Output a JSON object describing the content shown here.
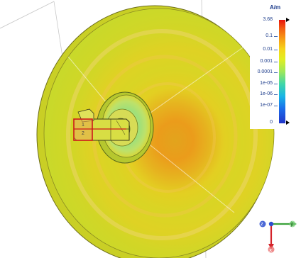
{
  "legend": {
    "unit": "A/m",
    "max_label": "3.68",
    "min_label": "0",
    "ticks": [
      "0.1",
      "0.01",
      "0.001",
      "0.0001",
      "1e-05",
      "1e-06",
      "1e-07"
    ]
  },
  "port": {
    "label_1": "1",
    "label_2": "2"
  },
  "axes": {
    "x_label": "x",
    "y_label": "y",
    "z_label": "z"
  },
  "colors": {
    "dish_outer": "#c7d92a",
    "dish_mid": "#e3d223",
    "dish_hot": "#e59b1c",
    "feed_box": "#d8de44",
    "port_red": "#cc1a1a",
    "axis_x": "#d4232a",
    "axis_y": "#3aa23a",
    "axis_z": "#2c4ecf"
  }
}
